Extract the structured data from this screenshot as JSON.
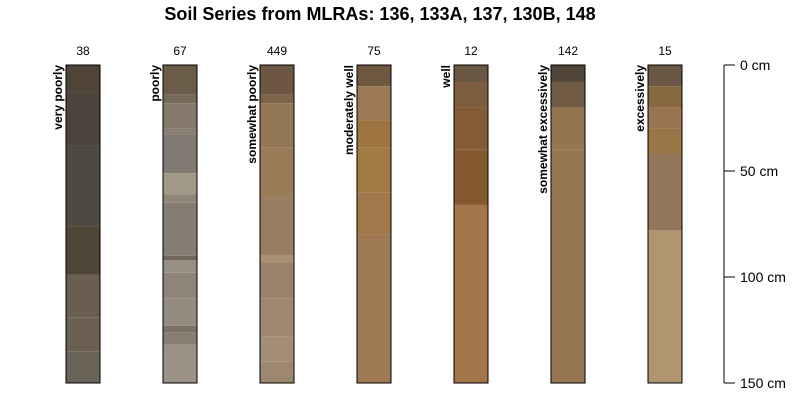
{
  "chart_data": {
    "type": "soil-profile-sketch",
    "title": "Soil Series from MLRAs: 136, 133A, 137, 130B, 148",
    "depth_unit": "cm",
    "depth_range": [
      0,
      150
    ],
    "depth_axis": {
      "side": "right",
      "ticks": [
        0,
        50,
        100,
        150
      ],
      "tick_labels": [
        "0 cm",
        "50 cm",
        "100 cm",
        "150 cm"
      ]
    },
    "profiles": [
      {
        "label": "very poorly",
        "count": "38",
        "horizons": [
          {
            "top": 0,
            "bottom": 13,
            "color": "#4f4437"
          },
          {
            "top": 13,
            "bottom": 38,
            "color": "#4c443a"
          },
          {
            "top": 38,
            "bottom": 76,
            "color": "#4f4a41"
          },
          {
            "top": 76,
            "bottom": 99,
            "color": "#4f4637"
          },
          {
            "top": 99,
            "bottom": 119,
            "color": "#6a5e50"
          },
          {
            "top": 119,
            "bottom": 135,
            "color": "#6b6052"
          },
          {
            "top": 135,
            "bottom": 150,
            "color": "#6a6357"
          }
        ]
      },
      {
        "label": "poorly",
        "count": "67",
        "horizons": [
          {
            "top": 0,
            "bottom": 14,
            "color": "#6b5c49"
          },
          {
            "top": 14,
            "bottom": 18,
            "color": "#756a58"
          },
          {
            "top": 18,
            "bottom": 30,
            "color": "#85796b"
          },
          {
            "top": 30,
            "bottom": 33,
            "color": "#8a7f72"
          },
          {
            "top": 33,
            "bottom": 51,
            "color": "#827b73"
          },
          {
            "top": 51,
            "bottom": 61,
            "color": "#a29888"
          },
          {
            "top": 61,
            "bottom": 65,
            "color": "#908678"
          },
          {
            "top": 65,
            "bottom": 90,
            "color": "#857d73"
          },
          {
            "top": 90,
            "bottom": 92,
            "color": "#70675e"
          },
          {
            "top": 92,
            "bottom": 98,
            "color": "#988f83"
          },
          {
            "top": 98,
            "bottom": 110,
            "color": "#8e8479"
          },
          {
            "top": 110,
            "bottom": 123,
            "color": "#948b80"
          },
          {
            "top": 123,
            "bottom": 126,
            "color": "#7a7066"
          },
          {
            "top": 126,
            "bottom": 132,
            "color": "#877d73"
          },
          {
            "top": 132,
            "bottom": 150,
            "color": "#9b9185"
          }
        ]
      },
      {
        "label": "somewhat poorly",
        "count": "449",
        "horizons": [
          {
            "top": 0,
            "bottom": 14,
            "color": "#6b5744"
          },
          {
            "top": 14,
            "bottom": 18,
            "color": "#7a6547"
          },
          {
            "top": 18,
            "bottom": 39,
            "color": "#937656"
          },
          {
            "top": 39,
            "bottom": 62,
            "color": "#9a7b57"
          },
          {
            "top": 62,
            "bottom": 90,
            "color": "#977e62"
          },
          {
            "top": 90,
            "bottom": 93,
            "color": "#a89073"
          },
          {
            "top": 93,
            "bottom": 110,
            "color": "#988269"
          },
          {
            "top": 110,
            "bottom": 128,
            "color": "#9e8770"
          },
          {
            "top": 128,
            "bottom": 140,
            "color": "#a28d76"
          },
          {
            "top": 140,
            "bottom": 150,
            "color": "#9c8770"
          }
        ]
      },
      {
        "label": "moderately well",
        "count": "75",
        "horizons": [
          {
            "top": 0,
            "bottom": 10,
            "color": "#6f5840"
          },
          {
            "top": 10,
            "bottom": 26,
            "color": "#9b7954"
          },
          {
            "top": 26,
            "bottom": 39,
            "color": "#9e7441"
          },
          {
            "top": 39,
            "bottom": 60,
            "color": "#a07a43"
          },
          {
            "top": 60,
            "bottom": 80,
            "color": "#a0784a"
          },
          {
            "top": 80,
            "bottom": 150,
            "color": "#9e7954"
          }
        ]
      },
      {
        "label": "well",
        "count": "12",
        "horizons": [
          {
            "top": 0,
            "bottom": 8,
            "color": "#6b5842"
          },
          {
            "top": 8,
            "bottom": 20,
            "color": "#7e5d3e"
          },
          {
            "top": 20,
            "bottom": 40,
            "color": "#835b34"
          },
          {
            "top": 40,
            "bottom": 66,
            "color": "#85592f"
          },
          {
            "top": 66,
            "bottom": 150,
            "color": "#a4744b"
          }
        ]
      },
      {
        "label": "somewhat excessively",
        "count": "142",
        "horizons": [
          {
            "top": 0,
            "bottom": 8,
            "color": "#504536"
          },
          {
            "top": 8,
            "bottom": 20,
            "color": "#6f5b44"
          },
          {
            "top": 20,
            "bottom": 40,
            "color": "#94754f"
          },
          {
            "top": 40,
            "bottom": 150,
            "color": "#977652"
          }
        ]
      },
      {
        "label": "excessively",
        "count": "15",
        "horizons": [
          {
            "top": 0,
            "bottom": 10,
            "color": "#6b5745"
          },
          {
            "top": 10,
            "bottom": 20,
            "color": "#87683f"
          },
          {
            "top": 20,
            "bottom": 30,
            "color": "#9a7551"
          },
          {
            "top": 30,
            "bottom": 42,
            "color": "#9a7548"
          },
          {
            "top": 42,
            "bottom": 78,
            "color": "#937659"
          },
          {
            "top": 78,
            "bottom": 150,
            "color": "#b19470"
          }
        ]
      }
    ]
  }
}
